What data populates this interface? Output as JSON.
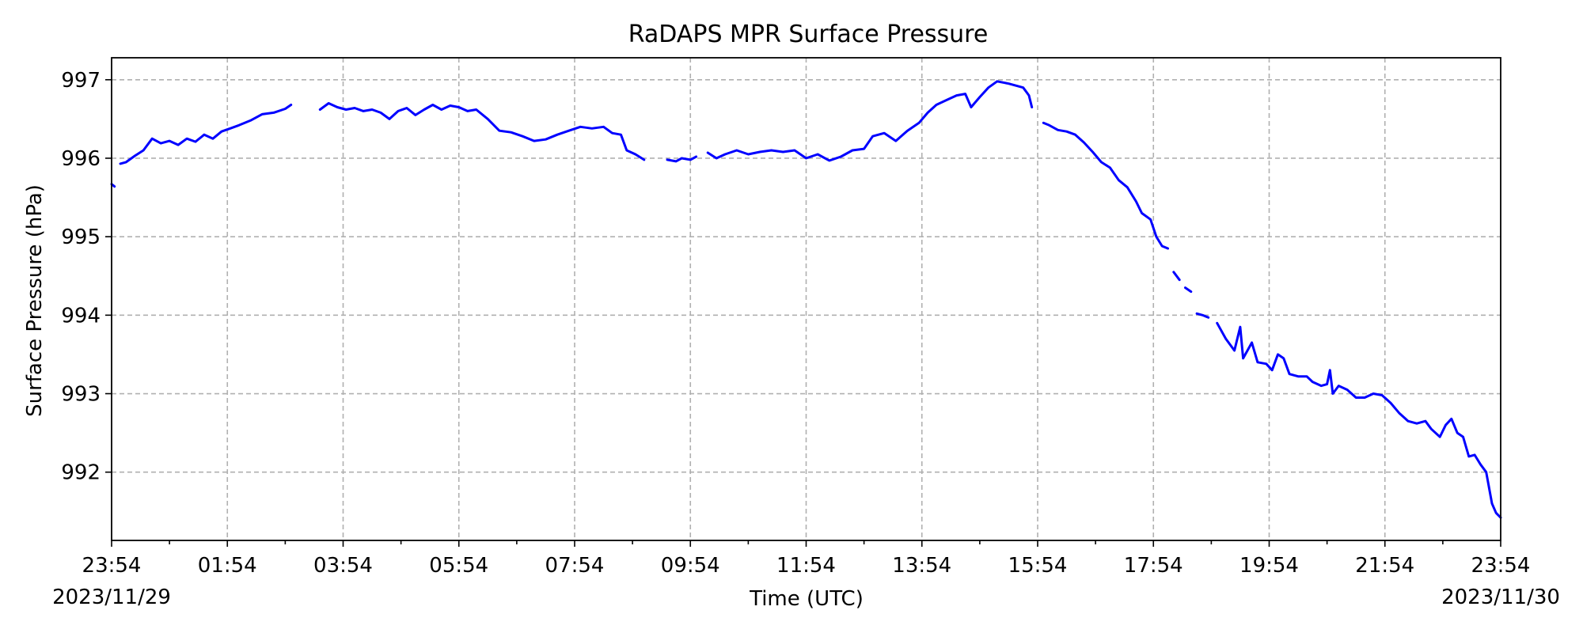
{
  "chart_data": {
    "type": "line",
    "title": "RaDAPS MPR Surface Pressure",
    "xlabel": "Time (UTC)",
    "ylabel": "Surface Pressure (hPa)",
    "x_units": "hours since 2023/11/29 23:54 UTC",
    "xlim": [
      0,
      24
    ],
    "ylim": [
      991.13,
      997.28
    ],
    "grid": true,
    "line_color": "#0000ff",
    "x_tick_labels": [
      {
        "x": 0,
        "label": "23:54"
      },
      {
        "x": 2,
        "label": "01:54"
      },
      {
        "x": 4,
        "label": "03:54"
      },
      {
        "x": 6,
        "label": "05:54"
      },
      {
        "x": 8,
        "label": "07:54"
      },
      {
        "x": 10,
        "label": "09:54"
      },
      {
        "x": 12,
        "label": "11:54"
      },
      {
        "x": 14,
        "label": "13:54"
      },
      {
        "x": 16,
        "label": "15:54"
      },
      {
        "x": 18,
        "label": "17:54"
      },
      {
        "x": 20,
        "label": "19:54"
      },
      {
        "x": 22,
        "label": "21:54"
      },
      {
        "x": 24,
        "label": "23:54"
      }
    ],
    "x_date_labels": [
      {
        "x": 0,
        "label": "2023/11/29"
      },
      {
        "x": 24,
        "label": "2023/11/30"
      }
    ],
    "y_ticks": [
      992,
      993,
      994,
      995,
      996,
      997
    ],
    "series": [
      {
        "name": "",
        "segments": [
          [
            [
              0.0,
              995.67
            ],
            [
              0.05,
              995.64
            ]
          ],
          [
            [
              0.15,
              995.93
            ],
            [
              0.25,
              995.95
            ],
            [
              0.4,
              996.03
            ],
            [
              0.55,
              996.1
            ],
            [
              0.7,
              996.25
            ],
            [
              0.85,
              996.19
            ],
            [
              1.0,
              996.22
            ],
            [
              1.15,
              996.17
            ],
            [
              1.3,
              996.25
            ],
            [
              1.45,
              996.21
            ],
            [
              1.6,
              996.3
            ],
            [
              1.75,
              996.25
            ],
            [
              1.9,
              996.34
            ],
            [
              2.05,
              996.38
            ],
            [
              2.2,
              996.42
            ],
            [
              2.4,
              996.48
            ],
            [
              2.6,
              996.56
            ],
            [
              2.8,
              996.58
            ],
            [
              3.0,
              996.63
            ],
            [
              3.1,
              996.68
            ]
          ],
          [
            [
              3.6,
              996.62
            ],
            [
              3.75,
              996.7
            ],
            [
              3.9,
              996.65
            ],
            [
              4.05,
              996.62
            ],
            [
              4.2,
              996.64
            ],
            [
              4.35,
              996.6
            ],
            [
              4.5,
              996.62
            ],
            [
              4.65,
              996.58
            ],
            [
              4.8,
              996.5
            ],
            [
              4.95,
              996.6
            ],
            [
              5.1,
              996.64
            ],
            [
              5.25,
              996.55
            ],
            [
              5.4,
              996.62
            ],
            [
              5.55,
              996.68
            ],
            [
              5.7,
              996.62
            ],
            [
              5.85,
              996.67
            ],
            [
              6.0,
              996.65
            ],
            [
              6.15,
              996.6
            ],
            [
              6.3,
              996.62
            ],
            [
              6.5,
              996.5
            ],
            [
              6.7,
              996.35
            ],
            [
              6.9,
              996.33
            ],
            [
              7.1,
              996.28
            ],
            [
              7.3,
              996.22
            ],
            [
              7.5,
              996.24
            ],
            [
              7.7,
              996.3
            ],
            [
              7.9,
              996.35
            ],
            [
              8.1,
              996.4
            ],
            [
              8.3,
              996.38
            ],
            [
              8.5,
              996.4
            ],
            [
              8.65,
              996.32
            ],
            [
              8.8,
              996.3
            ],
            [
              8.9,
              996.1
            ],
            [
              9.05,
              996.05
            ],
            [
              9.2,
              995.98
            ]
          ],
          [
            [
              9.6,
              995.98
            ],
            [
              9.75,
              995.96
            ],
            [
              9.85,
              996.0
            ],
            [
              10.0,
              995.98
            ],
            [
              10.1,
              996.02
            ]
          ],
          [
            [
              10.3,
              996.07
            ],
            [
              10.45,
              996.0
            ],
            [
              10.6,
              996.05
            ],
            [
              10.8,
              996.1
            ],
            [
              11.0,
              996.05
            ],
            [
              11.2,
              996.08
            ],
            [
              11.4,
              996.1
            ],
            [
              11.6,
              996.08
            ],
            [
              11.8,
              996.1
            ],
            [
              12.0,
              996.0
            ],
            [
              12.2,
              996.05
            ],
            [
              12.4,
              995.97
            ],
            [
              12.6,
              996.02
            ],
            [
              12.8,
              996.1
            ],
            [
              13.0,
              996.12
            ],
            [
              13.15,
              996.28
            ],
            [
              13.35,
              996.32
            ],
            [
              13.55,
              996.22
            ],
            [
              13.75,
              996.35
            ],
            [
              13.95,
              996.45
            ],
            [
              14.1,
              996.58
            ],
            [
              14.25,
              996.68
            ],
            [
              14.45,
              996.75
            ],
            [
              14.6,
              996.8
            ],
            [
              14.75,
              996.82
            ],
            [
              14.85,
              996.65
            ],
            [
              15.0,
              996.78
            ],
            [
              15.15,
              996.9
            ],
            [
              15.3,
              996.98
            ],
            [
              15.5,
              996.95
            ],
            [
              15.65,
              996.92
            ],
            [
              15.75,
              996.9
            ],
            [
              15.85,
              996.8
            ],
            [
              15.9,
              996.65
            ]
          ],
          [
            [
              16.1,
              996.45
            ],
            [
              16.2,
              996.42
            ],
            [
              16.35,
              996.36
            ],
            [
              16.5,
              996.34
            ],
            [
              16.65,
              996.3
            ],
            [
              16.8,
              996.2
            ],
            [
              16.95,
              996.08
            ],
            [
              17.1,
              995.95
            ],
            [
              17.25,
              995.88
            ],
            [
              17.4,
              995.72
            ],
            [
              17.55,
              995.63
            ],
            [
              17.7,
              995.45
            ],
            [
              17.8,
              995.3
            ],
            [
              17.95,
              995.22
            ],
            [
              18.05,
              995.0
            ],
            [
              18.15,
              994.88
            ],
            [
              18.25,
              994.85
            ]
          ],
          [
            [
              18.35,
              994.55
            ],
            [
              18.45,
              994.45
            ]
          ],
          [
            [
              18.55,
              994.35
            ],
            [
              18.65,
              994.3
            ]
          ],
          [
            [
              18.75,
              994.02
            ],
            [
              18.85,
              994.0
            ],
            [
              18.95,
              993.97
            ]
          ],
          [
            [
              19.1,
              993.9
            ],
            [
              19.25,
              993.7
            ],
            [
              19.4,
              993.55
            ],
            [
              19.5,
              993.85
            ],
            [
              19.55,
              993.45
            ],
            [
              19.7,
              993.65
            ],
            [
              19.8,
              993.4
            ],
            [
              19.95,
              993.38
            ],
            [
              20.05,
              993.3
            ],
            [
              20.15,
              993.5
            ],
            [
              20.25,
              993.45
            ],
            [
              20.35,
              993.25
            ],
            [
              20.5,
              993.22
            ],
            [
              20.65,
              993.22
            ],
            [
              20.75,
              993.15
            ],
            [
              20.9,
              993.1
            ],
            [
              21.0,
              993.12
            ],
            [
              21.05,
              993.3
            ],
            [
              21.1,
              993.0
            ],
            [
              21.2,
              993.1
            ],
            [
              21.35,
              993.05
            ],
            [
              21.5,
              992.95
            ],
            [
              21.65,
              992.95
            ],
            [
              21.8,
              993.0
            ],
            [
              21.95,
              992.98
            ],
            [
              22.1,
              992.88
            ],
            [
              22.25,
              992.75
            ],
            [
              22.4,
              992.65
            ],
            [
              22.55,
              992.62
            ],
            [
              22.7,
              992.65
            ],
            [
              22.8,
              992.55
            ],
            [
              22.95,
              992.45
            ],
            [
              23.05,
              992.6
            ],
            [
              23.15,
              992.68
            ],
            [
              23.25,
              992.5
            ],
            [
              23.35,
              992.45
            ],
            [
              23.45,
              992.2
            ],
            [
              23.55,
              992.22
            ],
            [
              23.65,
              992.1
            ],
            [
              23.75,
              992.0
            ],
            [
              23.85,
              991.6
            ],
            [
              23.92,
              991.48
            ],
            [
              24.0,
              991.42
            ]
          ]
        ]
      }
    ]
  }
}
